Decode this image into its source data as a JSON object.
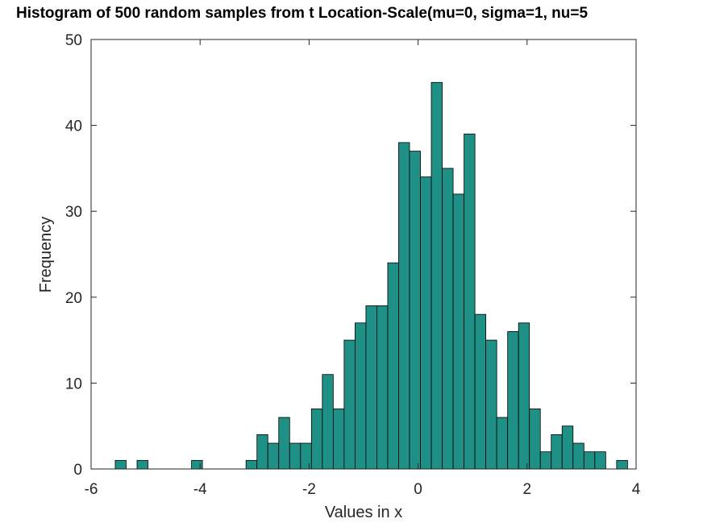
{
  "chart_data": {
    "type": "bar",
    "title": "Histogram of 500 random samples from t Location-Scale(mu=0, sigma=1, nu=5",
    "xlabel": "Values in x",
    "ylabel": "Frequency",
    "xlim": [
      -6,
      4
    ],
    "ylim": [
      0,
      50
    ],
    "xticks": [
      -6,
      -4,
      -2,
      0,
      2,
      4
    ],
    "yticks": [
      0,
      10,
      20,
      30,
      40,
      50
    ],
    "bar_color": "#1f9085",
    "bins": [
      {
        "x0": -5.557,
        "x1": -5.357,
        "count": 1
      },
      {
        "x0": -5.157,
        "x1": -4.957,
        "count": 1
      },
      {
        "x0": -4.157,
        "x1": -3.957,
        "count": 1
      },
      {
        "x0": -3.157,
        "x1": -2.957,
        "count": 1
      },
      {
        "x0": -2.957,
        "x1": -2.757,
        "count": 4
      },
      {
        "x0": -2.757,
        "x1": -2.557,
        "count": 3
      },
      {
        "x0": -2.557,
        "x1": -2.357,
        "count": 6
      },
      {
        "x0": -2.357,
        "x1": -2.157,
        "count": 3
      },
      {
        "x0": -2.157,
        "x1": -1.957,
        "count": 3
      },
      {
        "x0": -1.957,
        "x1": -1.757,
        "count": 7
      },
      {
        "x0": -1.757,
        "x1": -1.557,
        "count": 11
      },
      {
        "x0": -1.557,
        "x1": -1.357,
        "count": 7
      },
      {
        "x0": -1.357,
        "x1": -1.157,
        "count": 15
      },
      {
        "x0": -1.157,
        "x1": -0.957,
        "count": 17
      },
      {
        "x0": -0.957,
        "x1": -0.757,
        "count": 19
      },
      {
        "x0": -0.757,
        "x1": -0.557,
        "count": 19
      },
      {
        "x0": -0.557,
        "x1": -0.357,
        "count": 24
      },
      {
        "x0": -0.357,
        "x1": -0.157,
        "count": 38
      },
      {
        "x0": -0.157,
        "x1": 0.043,
        "count": 37
      },
      {
        "x0": 0.043,
        "x1": 0.243,
        "count": 34
      },
      {
        "x0": 0.243,
        "x1": 0.443,
        "count": 45
      },
      {
        "x0": 0.443,
        "x1": 0.643,
        "count": 35
      },
      {
        "x0": 0.643,
        "x1": 0.843,
        "count": 32
      },
      {
        "x0": 0.843,
        "x1": 1.043,
        "count": 39
      },
      {
        "x0": 1.043,
        "x1": 1.243,
        "count": 18
      },
      {
        "x0": 1.243,
        "x1": 1.443,
        "count": 15
      },
      {
        "x0": 1.443,
        "x1": 1.643,
        "count": 6
      },
      {
        "x0": 1.643,
        "x1": 1.843,
        "count": 16
      },
      {
        "x0": 1.843,
        "x1": 2.043,
        "count": 17
      },
      {
        "x0": 2.043,
        "x1": 2.243,
        "count": 7
      },
      {
        "x0": 2.243,
        "x1": 2.443,
        "count": 2
      },
      {
        "x0": 2.443,
        "x1": 2.643,
        "count": 4
      },
      {
        "x0": 2.643,
        "x1": 2.843,
        "count": 5
      },
      {
        "x0": 2.843,
        "x1": 3.043,
        "count": 3
      },
      {
        "x0": 3.043,
        "x1": 3.243,
        "count": 2
      },
      {
        "x0": 3.243,
        "x1": 3.443,
        "count": 2
      },
      {
        "x0": 3.643,
        "x1": 3.843,
        "count": 1
      }
    ]
  }
}
